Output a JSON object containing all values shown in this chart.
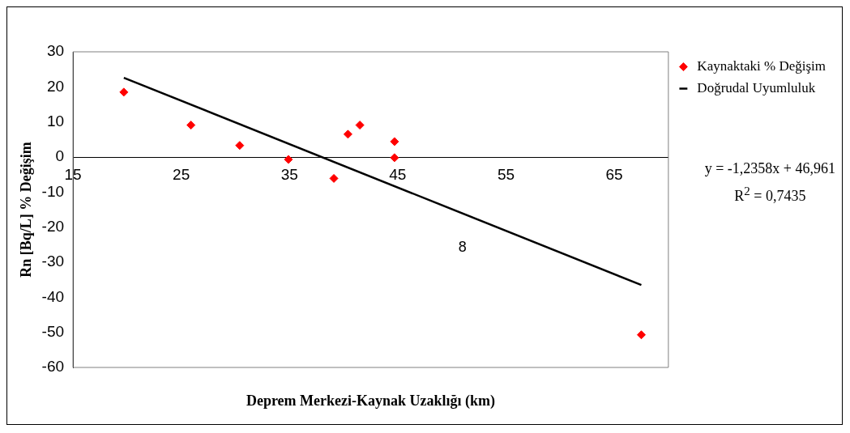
{
  "chart_data": {
    "type": "scatter",
    "xlabel": "Deprem Merkezi-Kaynak Uzaklığı (km)",
    "ylabel": "Rn [Bq/L] % Değişim",
    "series": [
      {
        "name": "Kaynaktaki % Değişim",
        "type": "scatter",
        "color": "#ff0000",
        "marker": "diamond",
        "x": [
          19.7,
          25.9,
          30.4,
          34.9,
          39.1,
          40.4,
          41.5,
          44.7,
          44.7,
          67.5
        ],
        "values": [
          18.5,
          9.1,
          3.3,
          -0.7,
          -6.1,
          6.5,
          9.1,
          4.4,
          -0.2,
          -50.7
        ]
      },
      {
        "name": "Doğrudal Uyumluluk",
        "type": "line",
        "color": "#000000",
        "marker": "none",
        "line_style": "solid",
        "x": [
          19.7,
          67.5
        ],
        "values": [
          22.6,
          -36.5
        ]
      }
    ],
    "xlim": [
      15,
      70
    ],
    "xticks": [
      15,
      25,
      35,
      45,
      55,
      65
    ],
    "ylim": [
      -60,
      30
    ],
    "yticks": [
      -60,
      -50,
      -40,
      -30,
      -20,
      -10,
      0,
      10,
      20,
      30
    ],
    "grid": false,
    "legend": "top right",
    "annotations": [
      "y = -1,2358x + 46,961",
      "R$^{2}$ = 0,7435",
      "8"
    ]
  }
}
